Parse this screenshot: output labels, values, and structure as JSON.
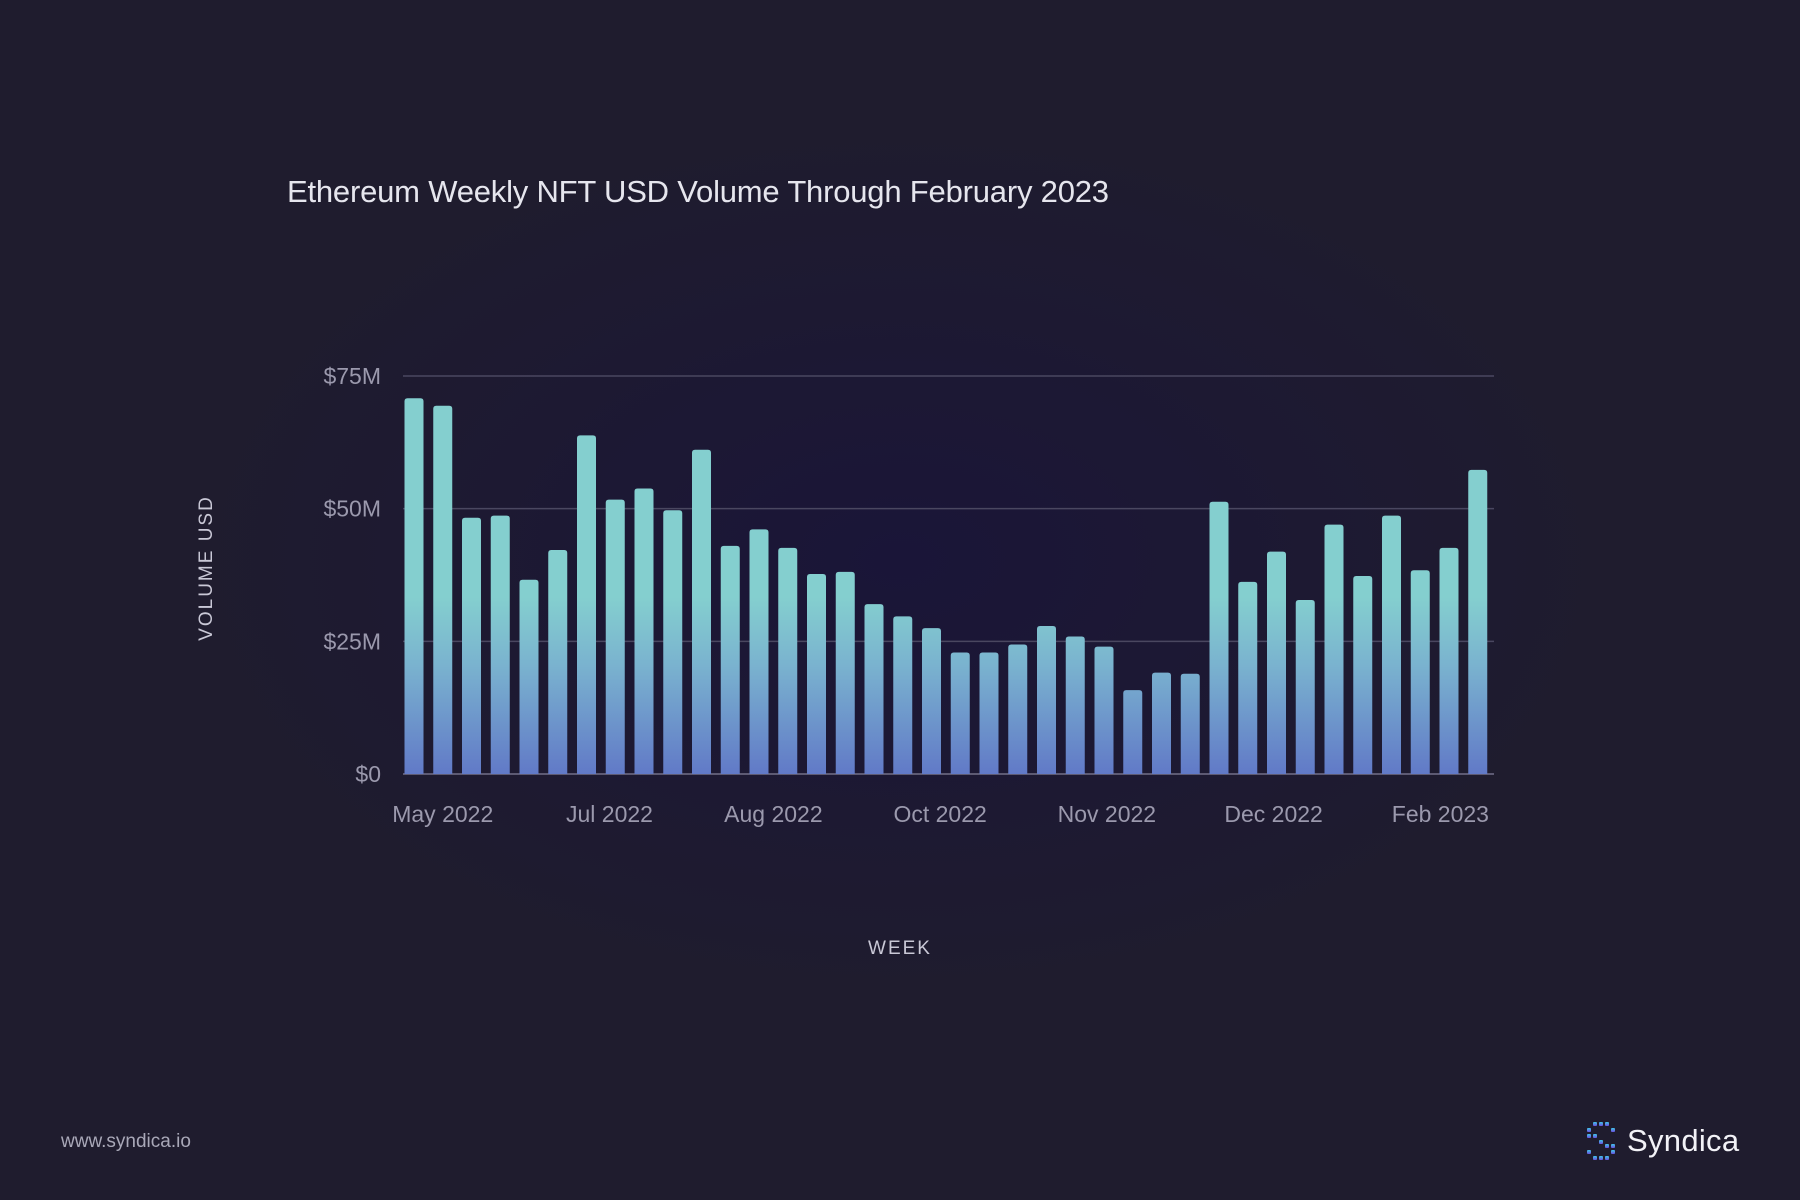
{
  "colors": {
    "background": "#1f1c2e",
    "bar_top": "#84cfcf",
    "bar_bottom": "#6179c7",
    "gridline": "#4a4760",
    "text_muted": "#9b99ad"
  },
  "chart_data": {
    "type": "bar",
    "title": "Ethereum Weekly NFT USD Volume Through February 2023",
    "xlabel": "WEEK",
    "ylabel": "VOLUME USD",
    "ylim": [
      0,
      75
    ],
    "y_unit": "Million USD",
    "grid": true,
    "y_ticks": [
      {
        "value": 0,
        "label": "$0"
      },
      {
        "value": 25,
        "label": "$25M"
      },
      {
        "value": 50,
        "label": "$50M"
      },
      {
        "value": 75,
        "label": "$75M"
      }
    ],
    "x_ticks": [
      {
        "index": 1.0,
        "label": "May 2022"
      },
      {
        "index": 6.8,
        "label": "Jul 2022"
      },
      {
        "index": 12.5,
        "label": "Aug 2022"
      },
      {
        "index": 18.3,
        "label": "Oct 2022"
      },
      {
        "index": 24.1,
        "label": "Nov 2022"
      },
      {
        "index": 29.9,
        "label": "Dec 2022"
      },
      {
        "index": 35.7,
        "label": "Feb 2023"
      }
    ],
    "values": [
      70.8,
      69.4,
      48.3,
      48.7,
      36.6,
      42.2,
      63.8,
      51.7,
      53.8,
      49.7,
      61.1,
      43.0,
      46.1,
      42.6,
      37.7,
      38.1,
      32.0,
      29.7,
      27.5,
      22.9,
      22.9,
      24.4,
      27.9,
      25.9,
      24.0,
      15.8,
      19.1,
      18.9,
      51.3,
      36.2,
      41.9,
      32.8,
      47.0,
      37.3,
      48.7,
      38.4,
      42.6,
      57.3
    ]
  },
  "footer": {
    "url": "www.syndica.io",
    "brand": "Syndica",
    "brand_icon": "syndica-logo-icon"
  }
}
